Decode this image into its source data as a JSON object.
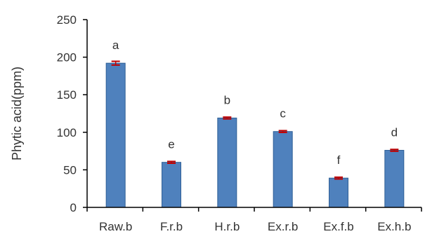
{
  "chart_data": {
    "type": "bar",
    "title": "",
    "xlabel": "",
    "ylabel": "Phytic acid(ppm)",
    "ylim": [
      0,
      250
    ],
    "yticks": [
      0,
      50,
      100,
      150,
      200,
      250
    ],
    "grid": false,
    "categories": [
      "Raw.b",
      "F.r.b",
      "H.r.b",
      "Ex.r.b",
      "Ex.f.b",
      "Ex.h.b"
    ],
    "values": [
      192,
      60,
      119,
      101,
      39,
      76
    ],
    "error": [
      2.5,
      1.2,
      1.2,
      1.2,
      1.2,
      1.2
    ],
    "significance": [
      "a",
      "e",
      "b",
      "c",
      "f",
      "d"
    ],
    "colors": {
      "bar": "#4f81bd",
      "bar_edge": "#2f5f96",
      "error_bar": "#c00000",
      "axis": "#000000"
    }
  }
}
